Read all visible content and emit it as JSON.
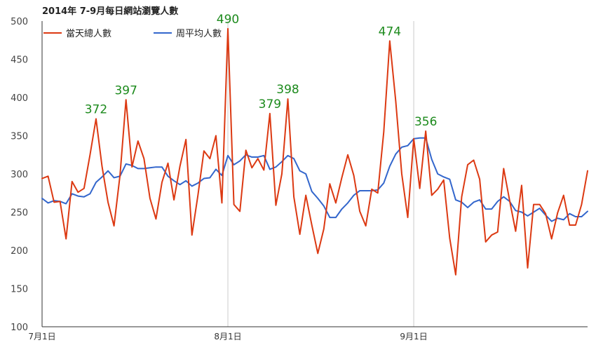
{
  "chart_data": {
    "type": "line",
    "title": "2014年 7-9月每日網站瀏覽人數",
    "xlabel": "",
    "ylabel": "",
    "ylim": [
      100,
      500
    ],
    "yticks": [
      100,
      150,
      200,
      250,
      300,
      350,
      400,
      450,
      500
    ],
    "x_ticks": [
      {
        "day": 1,
        "label": "7月1日"
      },
      {
        "day": 32,
        "label": "8月1日"
      },
      {
        "day": 63,
        "label": "9月1日"
      }
    ],
    "grid": "vertical lines at month starts",
    "legend_position": "top-left",
    "series": [
      {
        "name": "當天總人數",
        "color": "#dc3912",
        "values": [
          294,
          297,
          263,
          264,
          215,
          290,
          276,
          281,
          325,
          372,
          310,
          263,
          232,
          298,
          397,
          309,
          343,
          320,
          268,
          241,
          289,
          314,
          266,
          310,
          345,
          220,
          272,
          330,
          320,
          350,
          262,
          490,
          260,
          251,
          331,
          308,
          320,
          305,
          379,
          259,
          300,
          398,
          270,
          221,
          272,
          233,
          196,
          228,
          287,
          262,
          295,
          325,
          298,
          251,
          232,
          280,
          275,
          355,
          474,
          395,
          300,
          243,
          346,
          281,
          356,
          272,
          280,
          292,
          216,
          168,
          270,
          312,
          318,
          293,
          211,
          220,
          224,
          307,
          265,
          225,
          285,
          177,
          260,
          260,
          248,
          215,
          249,
          272,
          233,
          233,
          260,
          304
        ]
      },
      {
        "name": "周平均人數",
        "color": "#3366cc",
        "values": [
          268,
          262,
          265,
          264,
          261,
          274,
          271,
          270,
          274,
          289,
          296,
          304,
          295,
          297,
          313,
          311,
          307,
          307,
          308,
          309,
          309,
          297,
          291,
          286,
          291,
          284,
          288,
          294,
          295,
          306,
          298,
          324,
          312,
          317,
          325,
          322,
          322,
          324,
          306,
          309,
          316,
          324,
          320,
          304,
          300,
          277,
          268,
          258,
          243,
          243,
          254,
          262,
          272,
          278,
          278,
          278,
          279,
          288,
          310,
          326,
          335,
          337,
          346,
          347,
          347,
          319,
          300,
          296,
          293,
          266,
          263,
          256,
          263,
          266,
          254,
          254,
          264,
          270,
          264,
          252,
          250,
          245,
          250,
          255,
          246,
          238,
          242,
          240,
          248,
          244,
          244,
          251
        ]
      }
    ],
    "annotations": [
      {
        "day": 10,
        "text": "372"
      },
      {
        "day": 15,
        "text": "397"
      },
      {
        "day": 32,
        "text": "490"
      },
      {
        "day": 39,
        "text": "379"
      },
      {
        "day": 42,
        "text": "398"
      },
      {
        "day": 59,
        "text": "474"
      },
      {
        "day": 65,
        "text": "356"
      }
    ]
  }
}
